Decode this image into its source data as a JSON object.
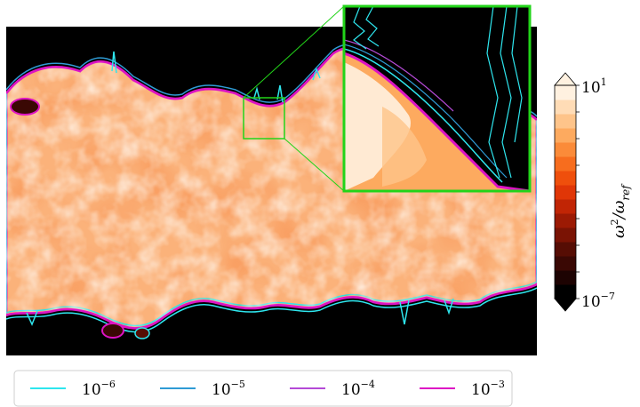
{
  "chart_data": {
    "type": "heatmap",
    "title": "",
    "colorbar": {
      "label": "ω²/ω²_ref",
      "label_main": "ω",
      "label_sup": "2",
      "label_div": "/ω",
      "label_sub": "ref",
      "scale": "log",
      "range": [
        1e-07,
        10
      ],
      "ticks": [
        {
          "base": "10",
          "exp": "1"
        },
        {
          "base": "10",
          "exp": "−7"
        }
      ],
      "extend": "both",
      "levels": 15,
      "colors": [
        "#000000",
        "#1d0302",
        "#3a0804",
        "#560d04",
        "#7a1304",
        "#9c1a04",
        "#c12505",
        "#e03607",
        "#ef4f0c",
        "#f76d1e",
        "#fb8b39",
        "#fdaa5f",
        "#fec48a",
        "#ffdcb6",
        "#fff1e0"
      ]
    },
    "contours": [
      {
        "exp": "−6",
        "label": "10−6",
        "color": "#2ee6ee"
      },
      {
        "exp": "−5",
        "label": "10−5",
        "color": "#2f9bd5"
      },
      {
        "exp": "−4",
        "label": "10−4",
        "color": "#b44ad6"
      },
      {
        "exp": "−3",
        "label": "10−3",
        "color": "#dd13c4"
      }
    ],
    "legend": {
      "placement": "bottom",
      "base": "10"
    },
    "inset": {
      "border_color": "#22d419",
      "shows": "zoomed region of the field"
    },
    "grid": false
  }
}
